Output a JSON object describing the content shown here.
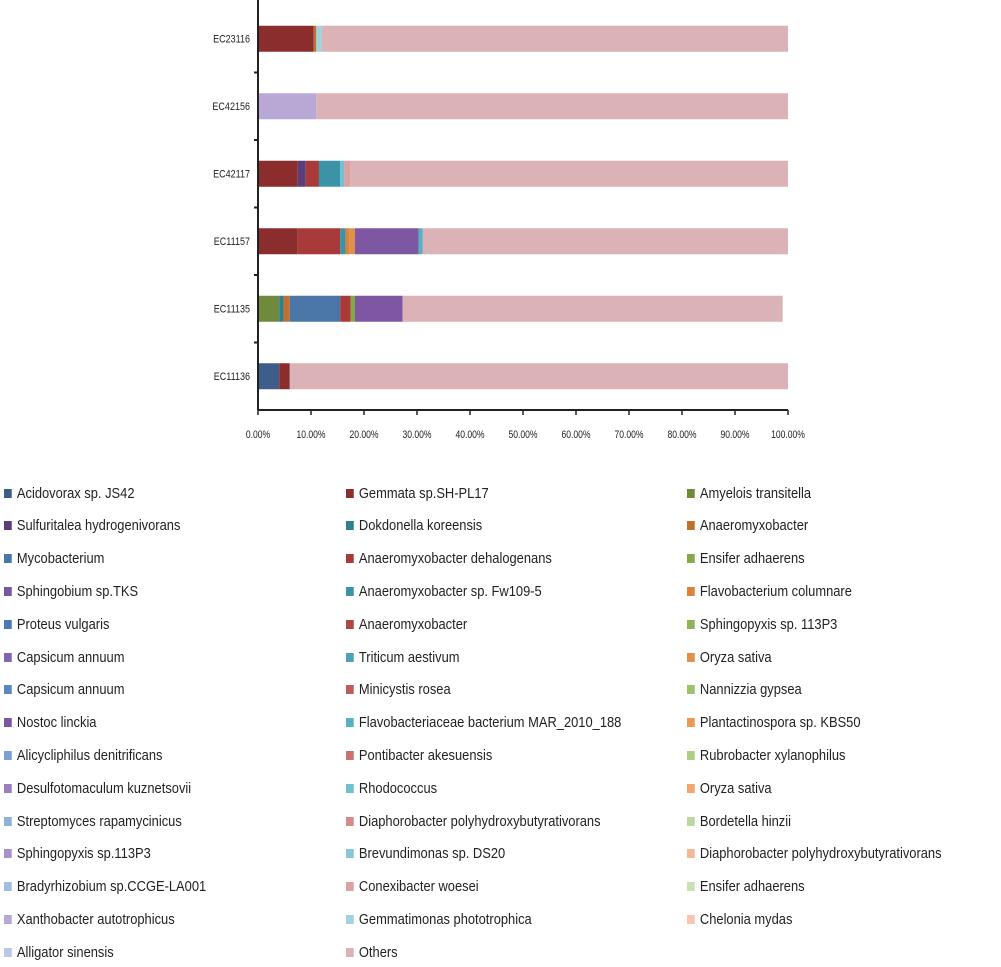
{
  "chart_data": {
    "type": "bar",
    "orientation": "horizontal",
    "stacked": true,
    "categories": [
      "EC23116",
      "EC42156",
      "EC42117",
      "EC11157",
      "EC11135",
      "EC11136"
    ],
    "x_ticks": [
      "0.00%",
      "10.00%",
      "20.00%",
      "30.00%",
      "40.00%",
      "50.00%",
      "60.00%",
      "70.00%",
      "80.00%",
      "90.00%",
      "100.00%"
    ],
    "xlim": [
      0,
      100
    ],
    "grid": false,
    "legend_position": "bottom",
    "series": [
      {
        "name": "Acidovorax sp. JS42",
        "color": "#3f5d8a",
        "values": [
          0,
          0,
          0,
          0,
          0,
          4.0
        ]
      },
      {
        "name": "Gemmata sp.SH-PL17",
        "color": "#8b2d2d",
        "values": [
          10.5,
          0,
          7.5,
          7.5,
          0,
          2.0
        ]
      },
      {
        "name": "Amyelois transitella",
        "color": "#6e8a3a",
        "values": [
          0,
          0,
          0,
          0,
          4.0,
          0
        ]
      },
      {
        "name": "Sulfuritalea hydrogenivorans",
        "color": "#5c3d7a",
        "values": [
          0,
          0,
          1.5,
          0,
          0,
          0
        ]
      },
      {
        "name": "Dokdonella koreensis",
        "color": "#2e7f8f",
        "values": [
          0,
          0,
          0,
          0,
          0.8,
          0
        ]
      },
      {
        "name": "Anaeromyxobacter",
        "color": "#c0702e",
        "values": [
          0.5,
          0,
          0,
          0,
          1.2,
          0
        ]
      },
      {
        "name": "Mycobacterium",
        "color": "#4a76a8",
        "values": [
          0,
          0,
          0,
          0,
          9.5,
          0
        ]
      },
      {
        "name": "Anaeromyxobacter dehalogenans",
        "color": "#a83a3a",
        "values": [
          0,
          0,
          2.5,
          8.0,
          2.0,
          0
        ]
      },
      {
        "name": "Ensifer adhaerens",
        "color": "#86a84a",
        "values": [
          0,
          0,
          0,
          0,
          0.8,
          0
        ]
      },
      {
        "name": "Sphingobium sp.TKS",
        "color": "#7458a0",
        "values": [
          0,
          0,
          0,
          0,
          0,
          0
        ]
      },
      {
        "name": "Anaeromyxobacter sp. Fw109-5",
        "color": "#3c93a8",
        "values": [
          0,
          0,
          4.0,
          1.0,
          0,
          0
        ]
      },
      {
        "name": "Flavobacterium columnare",
        "color": "#d9843a",
        "values": [
          0,
          0,
          0,
          0.8,
          0,
          0
        ]
      },
      {
        "name": "Proteus vulgaris",
        "color": "#4f79b5",
        "values": [
          0,
          0,
          0,
          0,
          0,
          0
        ]
      },
      {
        "name": "Anaeromyxobacter",
        "color": "#b04545",
        "values": [
          0,
          0,
          0,
          0,
          0,
          0
        ]
      },
      {
        "name": "Sphingopyxis sp. 113P3",
        "color": "#8fb35a",
        "values": [
          0,
          0,
          0,
          0,
          0,
          0
        ]
      },
      {
        "name": "Capsicum annuum",
        "color": "#8166ad",
        "values": [
          0,
          0,
          0,
          0,
          0,
          0
        ]
      },
      {
        "name": "Triticum aestivum",
        "color": "#4aa3b8",
        "values": [
          0,
          0,
          0,
          0,
          0,
          0
        ]
      },
      {
        "name": "Oryza sativa",
        "color": "#e0904a",
        "values": [
          0,
          0,
          0,
          1.0,
          0,
          0
        ]
      },
      {
        "name": "Capsicum annuum",
        "color": "#5b86c0",
        "values": [
          0,
          0,
          0,
          0,
          0,
          0
        ]
      },
      {
        "name": "Minicystis rosea",
        "color": "#bf5b5b",
        "values": [
          0,
          0,
          0,
          0,
          0,
          0
        ]
      },
      {
        "name": "Nannizzia gypsea",
        "color": "#9cc06c",
        "values": [
          0,
          0,
          0,
          0,
          0,
          0
        ]
      },
      {
        "name": "Nostoc linckia",
        "color": "#7e57a3",
        "values": [
          0,
          0,
          0,
          12.0,
          9.0,
          0
        ]
      },
      {
        "name": "Flavobacteriaceae bacterium MAR_2010_188",
        "color": "#54b1c6",
        "values": [
          0,
          0,
          0,
          0.8,
          0,
          0
        ]
      },
      {
        "name": "Plantactinospora sp. KBS50",
        "color": "#eb9a55",
        "values": [
          0,
          0,
          0,
          0,
          0,
          0
        ]
      },
      {
        "name": "Alicycliphilus denitrificans",
        "color": "#7a9fd0",
        "values": [
          0,
          0,
          0,
          0,
          0,
          0
        ]
      },
      {
        "name": "Pontibacter akesuensis",
        "color": "#cc7070",
        "values": [
          0,
          0,
          0,
          0,
          0,
          0
        ]
      },
      {
        "name": "Rubrobacter xylanophilus",
        "color": "#acd084",
        "values": [
          0,
          0,
          0,
          0,
          0,
          0
        ]
      },
      {
        "name": "Desulfotomaculum kuznetsovii",
        "color": "#9a7fc0",
        "values": [
          0,
          0,
          0,
          0,
          0,
          0
        ]
      },
      {
        "name": "Rhodococcus",
        "color": "#6ec0d2",
        "values": [
          0,
          0,
          0.8,
          0,
          0,
          0
        ]
      },
      {
        "name": "Oryza sativa",
        "color": "#f0a870",
        "values": [
          0,
          0,
          0,
          0,
          0,
          0
        ]
      },
      {
        "name": "Streptomyces rapamycinicus",
        "color": "#8fb0d8",
        "values": [
          0,
          0,
          0,
          0,
          0,
          0
        ]
      },
      {
        "name": "Diaphorobacter polyhydroxybutyrativorans",
        "color": "#d48a8a",
        "values": [
          0,
          0,
          0,
          0,
          0,
          0
        ]
      },
      {
        "name": "Bordetella hinzii",
        "color": "#bcd8a0",
        "values": [
          0,
          0,
          0,
          0,
          0,
          0
        ]
      },
      {
        "name": "Sphingopyxis sp.113P3",
        "color": "#a992cc",
        "values": [
          0,
          0,
          0,
          0,
          0,
          0
        ]
      },
      {
        "name": "Brevundimonas sp. DS20",
        "color": "#86c8d8",
        "values": [
          0,
          0,
          0,
          0,
          0,
          0
        ]
      },
      {
        "name": "Diaphorobacter polyhydroxybutyrativorans",
        "color": "#f2b898",
        "values": [
          0,
          0,
          0,
          0,
          0,
          0
        ]
      },
      {
        "name": "Bradyrhizobium sp.CCGE-LA001",
        "color": "#a3bde0",
        "values": [
          0,
          0,
          0,
          0,
          0,
          0
        ]
      },
      {
        "name": "Conexibacter woesei",
        "color": "#dca2a2",
        "values": [
          0,
          0,
          1.2,
          0,
          0,
          0
        ]
      },
      {
        "name": "Ensifer adhaerens",
        "color": "#cce0b6",
        "values": [
          0,
          0,
          0,
          0,
          0,
          0
        ]
      },
      {
        "name": "Xanthobacter autotrophicus",
        "color": "#b8a8d6",
        "values": [
          0,
          11.0,
          0,
          0,
          0,
          0
        ]
      },
      {
        "name": "Gemmatimonas phototrophica",
        "color": "#a0d2e0",
        "values": [
          1.0,
          0,
          0,
          0,
          0,
          0
        ]
      },
      {
        "name": "Chelonia mydas",
        "color": "#f6c6ae",
        "values": [
          0,
          0,
          0,
          0,
          0,
          0
        ]
      },
      {
        "name": "Alligator sinensis",
        "color": "#b8c8e6",
        "values": [
          0,
          0,
          0,
          0,
          0,
          0
        ]
      },
      {
        "name": "Others",
        "color": "#dbb3b6",
        "values": [
          88.0,
          89.0,
          82.5,
          68.9,
          71.7,
          94.0
        ]
      }
    ]
  }
}
